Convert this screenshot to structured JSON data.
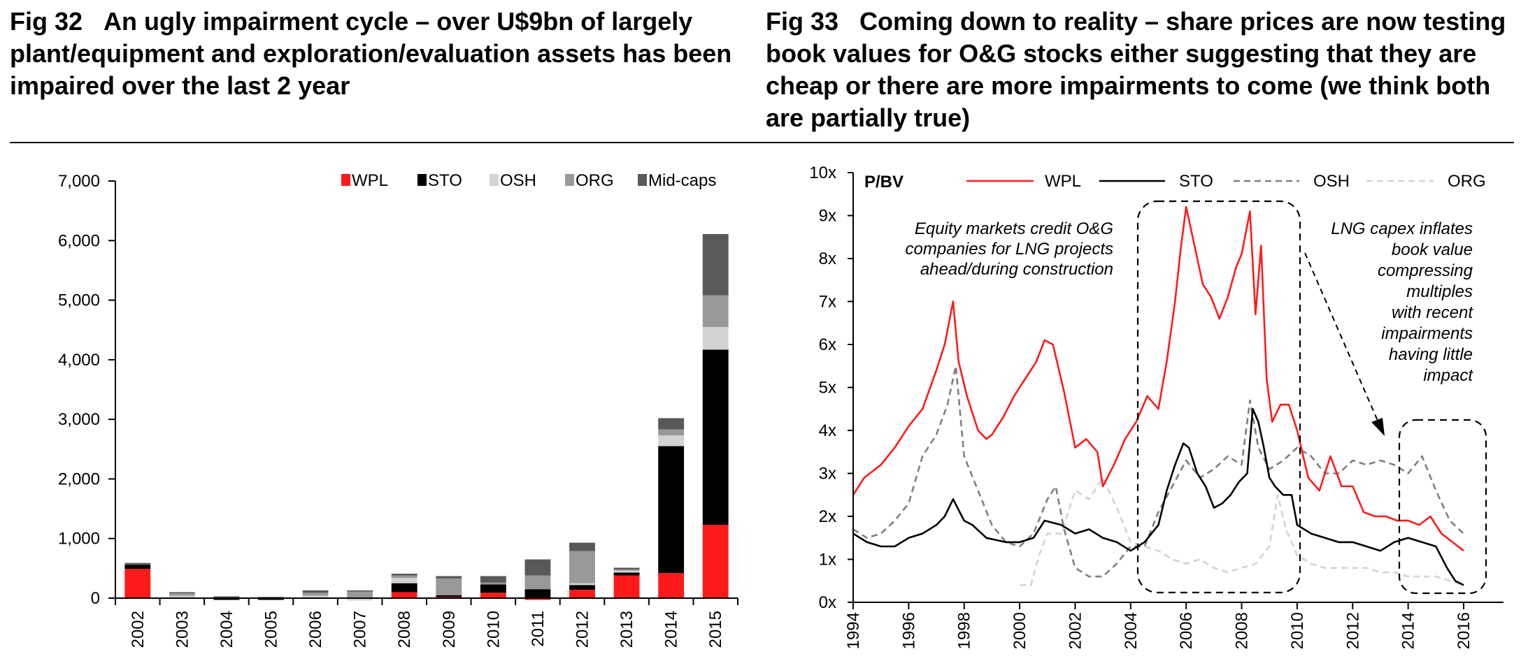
{
  "fig32": {
    "num": "Fig 32",
    "title": "An ugly impairment cycle – over U$9bn of largely plant/equipment and exploration/evaluation assets has been impaired over the last 2 year"
  },
  "fig33": {
    "num": "Fig 33",
    "title": "Coming down to reality – share prices are now testing book values for O&G stocks either suggesting that they are cheap or there are more impairments to come (we think both are partially true)"
  },
  "colors": {
    "WPL": "#ff1a1a",
    "STO": "#000000",
    "OSH": "#d3d3d3",
    "ORG": "#999999",
    "Mid-caps": "#595959"
  },
  "chart_data": [
    {
      "type": "bar",
      "stacked": true,
      "title": "",
      "xlabel": "",
      "ylabel": "",
      "ylim": [
        0,
        7000
      ],
      "yticks": [
        "0",
        "1,000",
        "2,000",
        "3,000",
        "4,000",
        "5,000",
        "6,000",
        "7,000"
      ],
      "ytick_values": [
        0,
        1000,
        2000,
        3000,
        4000,
        5000,
        6000,
        7000
      ],
      "legend_position": "top-right",
      "categories": [
        "2002",
        "2003",
        "2004",
        "2005",
        "2006",
        "2007",
        "2008",
        "2009",
        "2010",
        "2011",
        "2012",
        "2013",
        "2014",
        "2015"
      ],
      "series": [
        {
          "name": "WPL",
          "values": [
            490,
            0,
            0,
            0,
            0,
            0,
            100,
            20,
            90,
            -30,
            140,
            380,
            420,
            1230
          ]
        },
        {
          "name": "STO",
          "values": [
            70,
            0,
            -30,
            -30,
            0,
            0,
            150,
            30,
            140,
            150,
            80,
            50,
            2130,
            2940
          ]
        },
        {
          "name": "OSH",
          "values": [
            0,
            40,
            0,
            0,
            40,
            -40,
            90,
            0,
            0,
            0,
            30,
            30,
            180,
            380
          ]
        },
        {
          "name": "ORG",
          "values": [
            0,
            40,
            0,
            0,
            50,
            110,
            40,
            280,
            30,
            230,
            540,
            20,
            100,
            530
          ]
        },
        {
          "name": "Mid-caps",
          "values": [
            30,
            20,
            30,
            20,
            40,
            20,
            30,
            40,
            110,
            270,
            140,
            30,
            190,
            1030
          ]
        }
      ]
    },
    {
      "type": "line",
      "title": "P/BV",
      "xlabel": "",
      "ylabel": "",
      "xlim": [
        1994,
        2016.3
      ],
      "ylim": [
        0,
        10
      ],
      "xticks": [
        "1994",
        "1996",
        "1998",
        "2000",
        "2002",
        "2004",
        "2006",
        "2008",
        "2010",
        "2012",
        "2014",
        "2016"
      ],
      "xtick_values": [
        1994,
        1996,
        1998,
        2000,
        2002,
        2004,
        2006,
        2008,
        2010,
        2012,
        2014,
        2016
      ],
      "yticks": [
        "0x",
        "1x",
        "2x",
        "3x",
        "4x",
        "5x",
        "6x",
        "7x",
        "8x",
        "9x",
        "10x"
      ],
      "ytick_values": [
        0,
        1,
        2,
        3,
        4,
        5,
        6,
        7,
        8,
        9,
        10
      ],
      "legend_position": "top",
      "series": [
        {
          "name": "WPL",
          "style": "solid",
          "x": [
            1994.0,
            1994.4,
            1995.0,
            1995.5,
            1996.0,
            1996.5,
            1997.0,
            1997.3,
            1997.6,
            1997.8,
            1998.1,
            1998.5,
            1998.8,
            1999.0,
            1999.4,
            1999.8,
            2000.2,
            2000.6,
            2000.9,
            2001.2,
            2001.6,
            2002.0,
            2002.4,
            2002.8,
            2003.0,
            2003.4,
            2003.8,
            2004.2,
            2004.6,
            2005.0,
            2005.3,
            2005.6,
            2005.8,
            2006.0,
            2006.3,
            2006.6,
            2006.9,
            2007.2,
            2007.5,
            2007.8,
            2008.0,
            2008.3,
            2008.5,
            2008.7,
            2008.9,
            2009.1,
            2009.4,
            2009.7,
            2010.0,
            2010.4,
            2010.8,
            2011.2,
            2011.6,
            2012.0,
            2012.4,
            2012.8,
            2013.2,
            2013.6,
            2014.0,
            2014.4,
            2014.8,
            2015.2,
            2015.6,
            2016.0
          ],
          "values": [
            2.5,
            2.9,
            3.2,
            3.6,
            4.1,
            4.5,
            5.4,
            6.0,
            7.0,
            5.6,
            4.8,
            4.0,
            3.8,
            3.9,
            4.3,
            4.8,
            5.2,
            5.6,
            6.1,
            6.0,
            4.9,
            3.6,
            3.8,
            3.5,
            2.7,
            3.2,
            3.8,
            4.2,
            4.8,
            4.5,
            5.6,
            7.0,
            8.2,
            9.2,
            8.3,
            7.4,
            7.1,
            6.6,
            7.1,
            7.8,
            8.1,
            9.1,
            6.7,
            8.3,
            5.2,
            4.2,
            4.6,
            4.6,
            4.0,
            2.9,
            2.6,
            3.4,
            2.7,
            2.7,
            2.1,
            2.0,
            2.0,
            1.9,
            1.9,
            1.8,
            2.0,
            1.6,
            1.4,
            1.2
          ]
        },
        {
          "name": "STO",
          "style": "solid",
          "x": [
            1994.0,
            1994.5,
            1995.0,
            1995.5,
            1996.0,
            1996.5,
            1997.0,
            1997.3,
            1997.6,
            1998.0,
            1998.3,
            1998.8,
            1999.5,
            2000.0,
            2000.5,
            2000.9,
            2001.5,
            2002.0,
            2002.5,
            2003.0,
            2003.5,
            2004.0,
            2004.5,
            2005.0,
            2005.3,
            2005.6,
            2005.9,
            2006.1,
            2006.4,
            2006.7,
            2007.0,
            2007.3,
            2007.6,
            2007.9,
            2008.2,
            2008.4,
            2008.6,
            2008.8,
            2009.0,
            2009.2,
            2009.5,
            2009.8,
            2010.0,
            2010.5,
            2011.0,
            2011.5,
            2012.0,
            2012.5,
            2013.0,
            2013.5,
            2014.0,
            2014.5,
            2015.0,
            2015.4,
            2015.7,
            2016.0
          ],
          "values": [
            1.6,
            1.4,
            1.3,
            1.3,
            1.5,
            1.6,
            1.8,
            2.0,
            2.4,
            1.9,
            1.8,
            1.5,
            1.4,
            1.4,
            1.5,
            1.9,
            1.8,
            1.6,
            1.7,
            1.5,
            1.4,
            1.2,
            1.4,
            1.8,
            2.6,
            3.2,
            3.7,
            3.6,
            3.0,
            2.7,
            2.2,
            2.3,
            2.5,
            2.8,
            3.0,
            4.5,
            4.2,
            3.6,
            2.9,
            2.7,
            2.5,
            2.5,
            1.8,
            1.6,
            1.5,
            1.4,
            1.4,
            1.3,
            1.2,
            1.4,
            1.5,
            1.4,
            1.3,
            0.8,
            0.5,
            0.4
          ]
        },
        {
          "name": "OSH",
          "style": "dashed",
          "x": [
            1994.0,
            1994.5,
            1995.0,
            1995.5,
            1996.0,
            1996.5,
            1997.0,
            1997.4,
            1997.7,
            1998.0,
            1998.5,
            1999.0,
            1999.5,
            2000.0,
            2000.5,
            2001.0,
            2001.3,
            2001.6,
            2002.0,
            2002.5,
            2003.0,
            2003.5,
            2004.0,
            2004.5,
            2005.0,
            2005.5,
            2006.0,
            2006.5,
            2007.0,
            2007.5,
            2008.0,
            2008.3,
            2008.6,
            2009.0,
            2009.5,
            2010.0,
            2010.5,
            2011.0,
            2011.5,
            2012.0,
            2012.5,
            2013.0,
            2013.5,
            2014.0,
            2014.5,
            2015.0,
            2015.5,
            2016.0
          ],
          "values": [
            1.7,
            1.5,
            1.6,
            1.9,
            2.3,
            3.4,
            3.9,
            4.6,
            5.5,
            3.4,
            2.6,
            1.8,
            1.4,
            1.3,
            1.6,
            2.4,
            2.7,
            1.7,
            0.8,
            0.6,
            0.6,
            0.9,
            1.3,
            1.3,
            2.1,
            2.7,
            3.3,
            2.9,
            3.1,
            3.4,
            3.2,
            4.7,
            3.6,
            3.1,
            3.3,
            3.6,
            3.4,
            3.0,
            3.0,
            3.3,
            3.2,
            3.3,
            3.2,
            3.0,
            3.4,
            2.6,
            1.9,
            1.6
          ]
        },
        {
          "name": "ORG",
          "style": "dashed",
          "x": [
            2000.0,
            2000.4,
            2000.7,
            2001.0,
            2001.5,
            2002.0,
            2002.5,
            2003.0,
            2003.5,
            2004.0,
            2004.5,
            2005.0,
            2005.5,
            2006.0,
            2006.5,
            2007.0,
            2007.5,
            2008.0,
            2008.5,
            2009.0,
            2009.3,
            2009.6,
            2010.0,
            2010.5,
            2011.0,
            2011.5,
            2012.0,
            2012.5,
            2013.0,
            2013.5,
            2014.0,
            2014.5,
            2015.0,
            2015.5,
            2016.0
          ],
          "values": [
            0.4,
            0.4,
            1.1,
            1.6,
            1.6,
            2.6,
            2.4,
            2.9,
            2.2,
            1.4,
            1.3,
            1.2,
            1.0,
            0.9,
            1.0,
            0.8,
            0.7,
            0.8,
            0.9,
            1.3,
            2.5,
            1.7,
            1.1,
            0.9,
            0.8,
            0.8,
            0.8,
            0.8,
            0.7,
            0.7,
            0.6,
            0.6,
            0.6,
            0.5,
            0.4
          ]
        }
      ],
      "annotations": {
        "left": [
          "Equity markets credit O&G",
          "companies for LNG projects",
          "ahead/during construction"
        ],
        "right": [
          "LNG capex inflates",
          "book  value",
          "compressing",
          "multiples",
          "with recent",
          "impairments",
          "having little",
          "impact"
        ]
      }
    }
  ]
}
